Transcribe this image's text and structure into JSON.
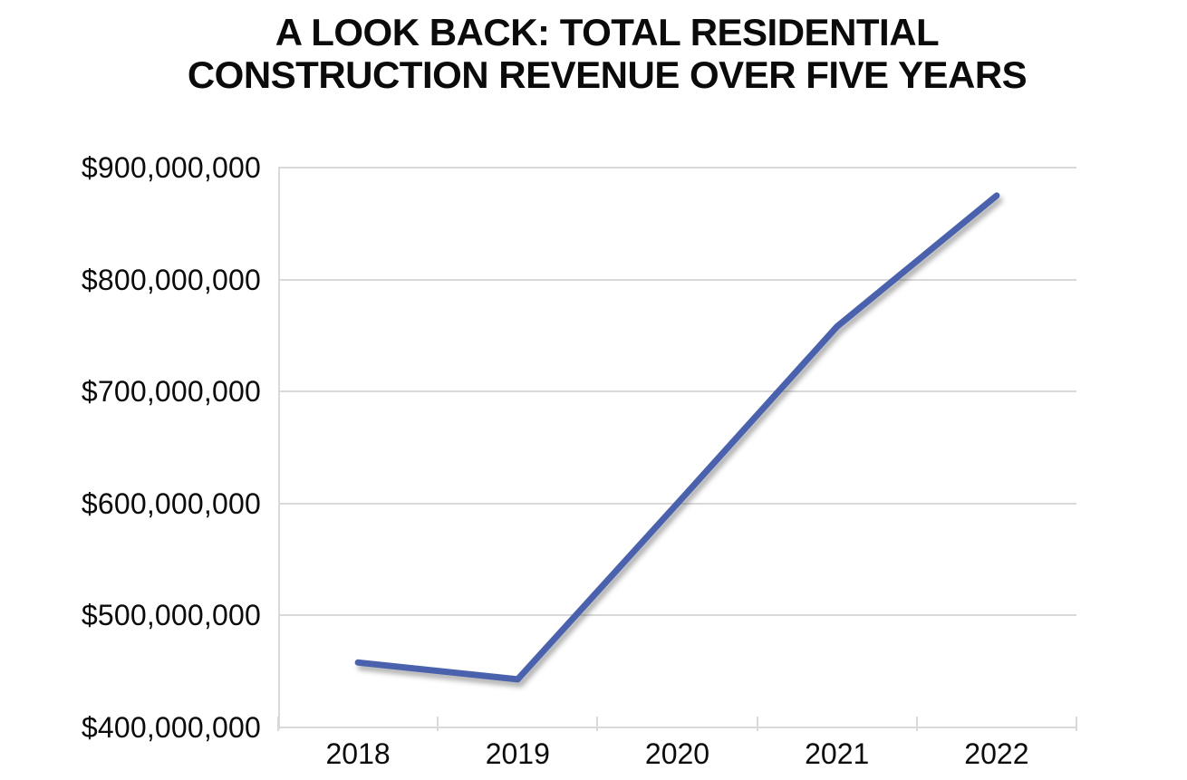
{
  "title": {
    "line1": "A LOOK BACK: TOTAL RESIDENTIAL",
    "line2": "CONSTRUCTION REVENUE OVER FIVE YEARS"
  },
  "chart_data": {
    "type": "line",
    "title": "A LOOK BACK: TOTAL RESIDENTIAL CONSTRUCTION REVENUE OVER FIVE YEARS",
    "categories": [
      "2018",
      "2019",
      "2020",
      "2021",
      "2022"
    ],
    "values": [
      458000000,
      443000000,
      600000000,
      758000000,
      875000000
    ],
    "xlabel": "",
    "ylabel": "",
    "ylim": [
      400000000,
      900000000
    ],
    "ytick_step": 100000000,
    "ytick_labels": [
      "$400,000,000",
      "$500,000,000",
      "$600,000,000",
      "$700,000,000",
      "$800,000,000",
      "$900,000,000"
    ],
    "grid": true,
    "legend": false
  },
  "colors": {
    "line": "#4a62ad",
    "grid": "#d9d9d9",
    "text": "#0b0b0b",
    "background": "#ffffff"
  }
}
